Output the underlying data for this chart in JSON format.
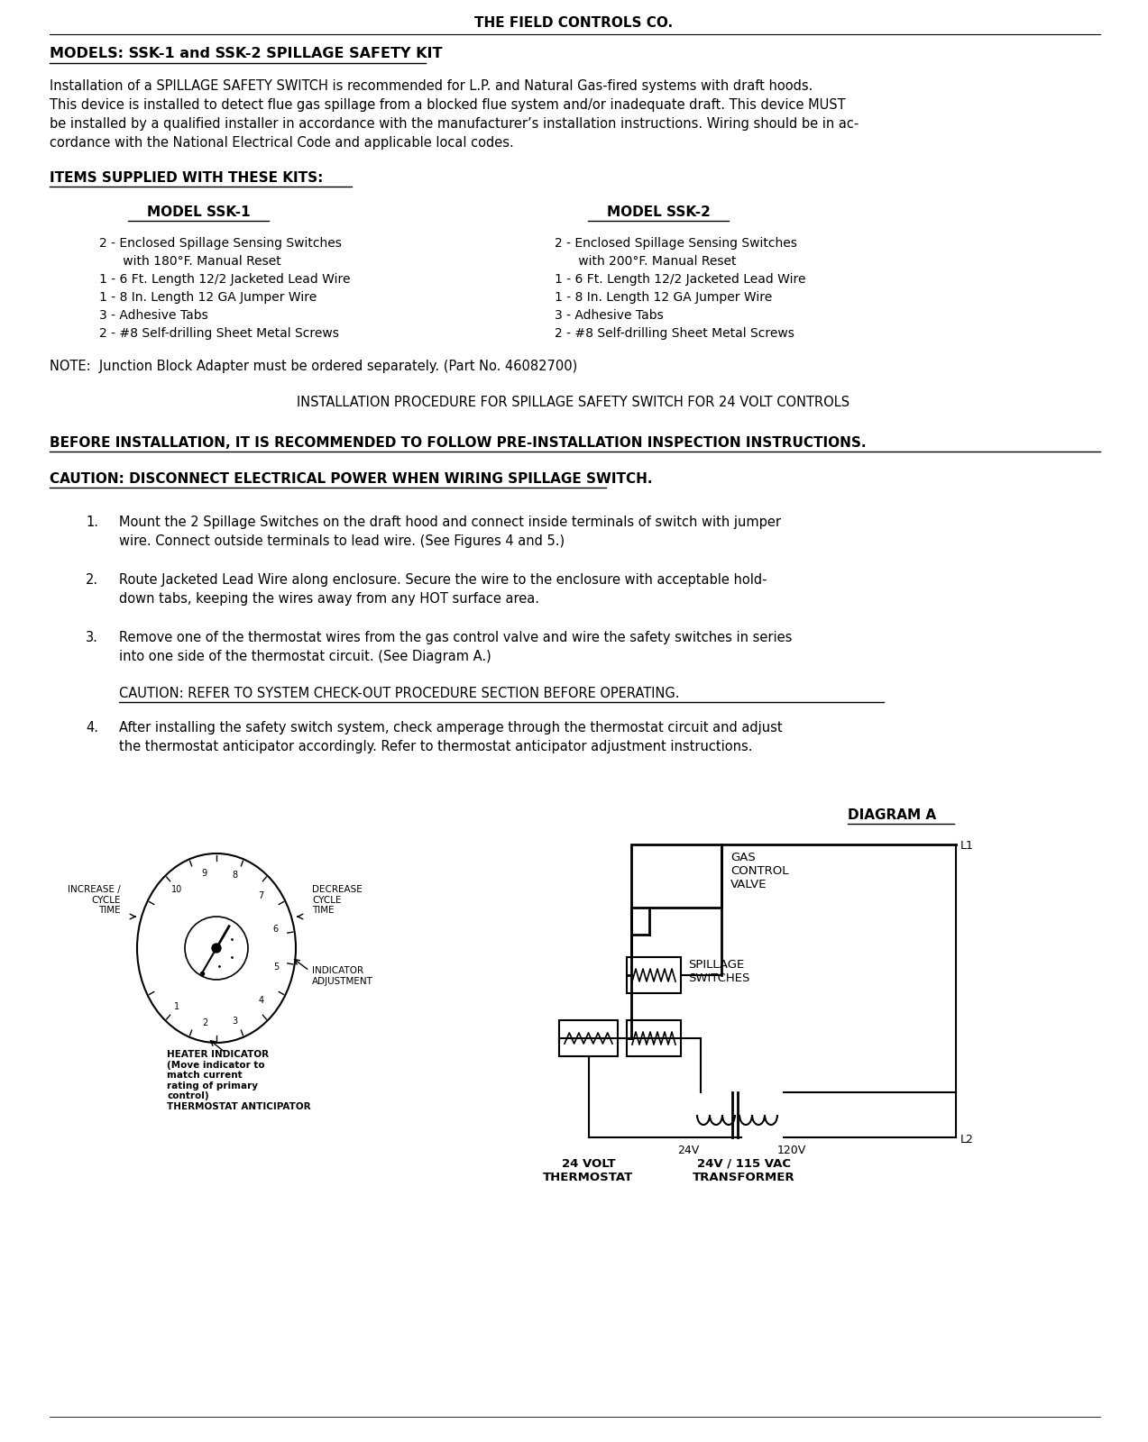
{
  "background_color": "#ffffff",
  "text_color": "#000000",
  "page_width": 12.73,
  "page_height": 16.0,
  "content": {
    "header": "THE FIELD CONTROLS CO.",
    "model_line": "MODELS: SSK-1 and SSK-2 SPILLAGE SAFETY KIT",
    "intro_para": "Installation of a SPILLAGE SAFETY SWITCH is recommended for L.P. and Natural Gas-fired systems with draft hoods.\nThis device is installed to detect flue gas spillage from a blocked flue system and/or inadequate draft. This device MUST\nbe installed by a qualified installer in accordance with the manufacturer’s installation instructions. Wiring should be in ac-\ncordance with the National Electrical Code and applicable local codes.",
    "items_heading": "ITEMS SUPPLIED WITH THESE KITS:",
    "model_ssk1_header": "MODEL SSK-1",
    "model_ssk2_header": "MODEL SSK-2",
    "ssk1_items": [
      "2 - Enclosed Spillage Sensing Switches",
      "      with 180°F. Manual Reset",
      "1 - 6 Ft. Length 12/2 Jacketed Lead Wire",
      "1 - 8 In. Length 12 GA Jumper Wire",
      "3 - Adhesive Tabs",
      "2 - #8 Self-drilling Sheet Metal Screws"
    ],
    "ssk2_items": [
      "2 - Enclosed Spillage Sensing Switches",
      "      with 200°F. Manual Reset",
      "1 - 6 Ft. Length 12/2 Jacketed Lead Wire",
      "1 - 8 In. Length 12 GA Jumper Wire",
      "3 - Adhesive Tabs",
      "2 - #8 Self-drilling Sheet Metal Screws"
    ],
    "note_line": "NOTE:  Junction Block Adapter must be ordered separately. (Part No. 46082700)",
    "install_heading": "INSTALLATION PROCEDURE FOR SPILLAGE SAFETY SWITCH FOR 24 VOLT CONTROLS",
    "before_install": "BEFORE INSTALLATION, IT IS RECOMMENDED TO FOLLOW PRE-INSTALLATION INSPECTION INSTRUCTIONS.",
    "caution1": "CAUTION: DISCONNECT ELECTRICAL POWER WHEN WIRING SPILLAGE SWITCH.",
    "step1_num": "1.",
    "step1_text": "Mount the 2 Spillage Switches on the draft hood and connect inside terminals of switch with jumper\nwire. Connect outside terminals to lead wire. (See Figures 4 and 5.)",
    "step2_num": "2.",
    "step2_text": "Route Jacketed Lead Wire along enclosure. Secure the wire to the enclosure with acceptable hold-\ndown tabs, keeping the wires away from any HOT surface area.",
    "step3_num": "3.",
    "step3_text": "Remove one of the thermostat wires from the gas control valve and wire the safety switches in series\ninto one side of the thermostat circuit. (See Diagram A.)",
    "caution2": "CAUTION: REFER TO SYSTEM CHECK-OUT PROCEDURE SECTION BEFORE OPERATING.",
    "step4_num": "4.",
    "step4_text": "After installing the safety switch system, check amperage through the thermostat circuit and adjust\nthe thermostat anticipator accordingly. Refer to thermostat anticipator adjustment instructions.",
    "diagram_a_label": "DIAGRAM A"
  }
}
